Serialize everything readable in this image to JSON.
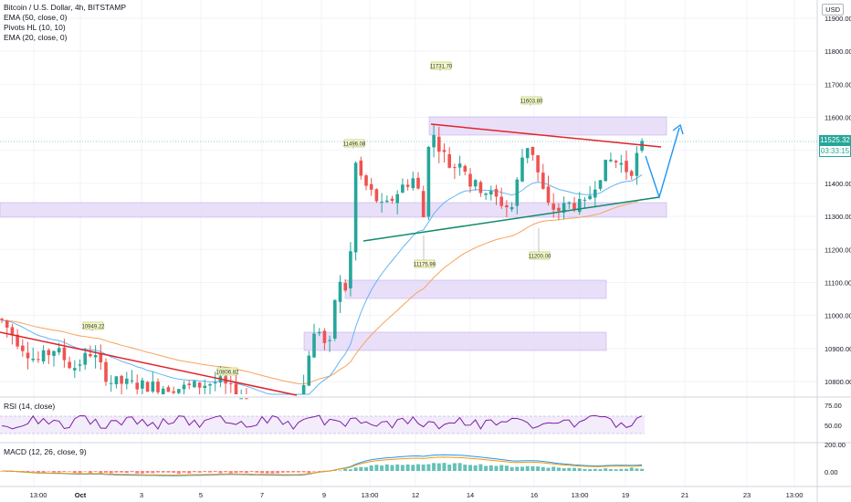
{
  "legend": [
    "Bitcoin / U.S. Dollar, 4h, BITSTAMP",
    "EMA (50, close, 0)",
    "Pivots HL (10, 10)",
    "EMA (20, close, 0)"
  ],
  "currency_button": "USD",
  "price_axis": {
    "ticks": [
      "11900.00",
      "11800.00",
      "11700.00",
      "11600.00",
      "11500.00",
      "11400.00",
      "11300.00",
      "11200.00",
      "11100.00",
      "11000.00",
      "10900.00",
      "10800.00"
    ],
    "last_price": "11525.32",
    "countdown": "03:33:15"
  },
  "pivot_labels": [
    {
      "text": "11731.70"
    },
    {
      "text": "11603.80"
    },
    {
      "text": "11496.08"
    },
    {
      "text": "11175.99"
    },
    {
      "text": "11200.00"
    },
    {
      "text": "10949.22"
    },
    {
      "text": "10806.82"
    }
  ],
  "rsi": {
    "label": "RSI (14, close)",
    "ticks": [
      "75.00",
      "50.00"
    ]
  },
  "macd": {
    "label": "MACD (12, 26, close, 9)",
    "ticks": [
      "200.00",
      "0.00"
    ]
  },
  "time_axis": [
    "13:00",
    "Oct",
    "3",
    "5",
    "7",
    "9",
    "13:00",
    "12",
    "14",
    "16",
    "13:00",
    "19",
    "21",
    "23",
    "13:00"
  ],
  "colors": {
    "up": "#26a69a",
    "down": "#ef5350",
    "ema50": "#f7a35c",
    "ema20": "#64b5f6",
    "zone": "#e1d4f7",
    "resistance": "#e0242a",
    "support": "#118a6b",
    "projection": "#2196f3",
    "rsi": "#7e1fa1",
    "rsi_band": "#f2ecfb",
    "macd": "#2196f3",
    "signal": "#ff9800"
  }
}
